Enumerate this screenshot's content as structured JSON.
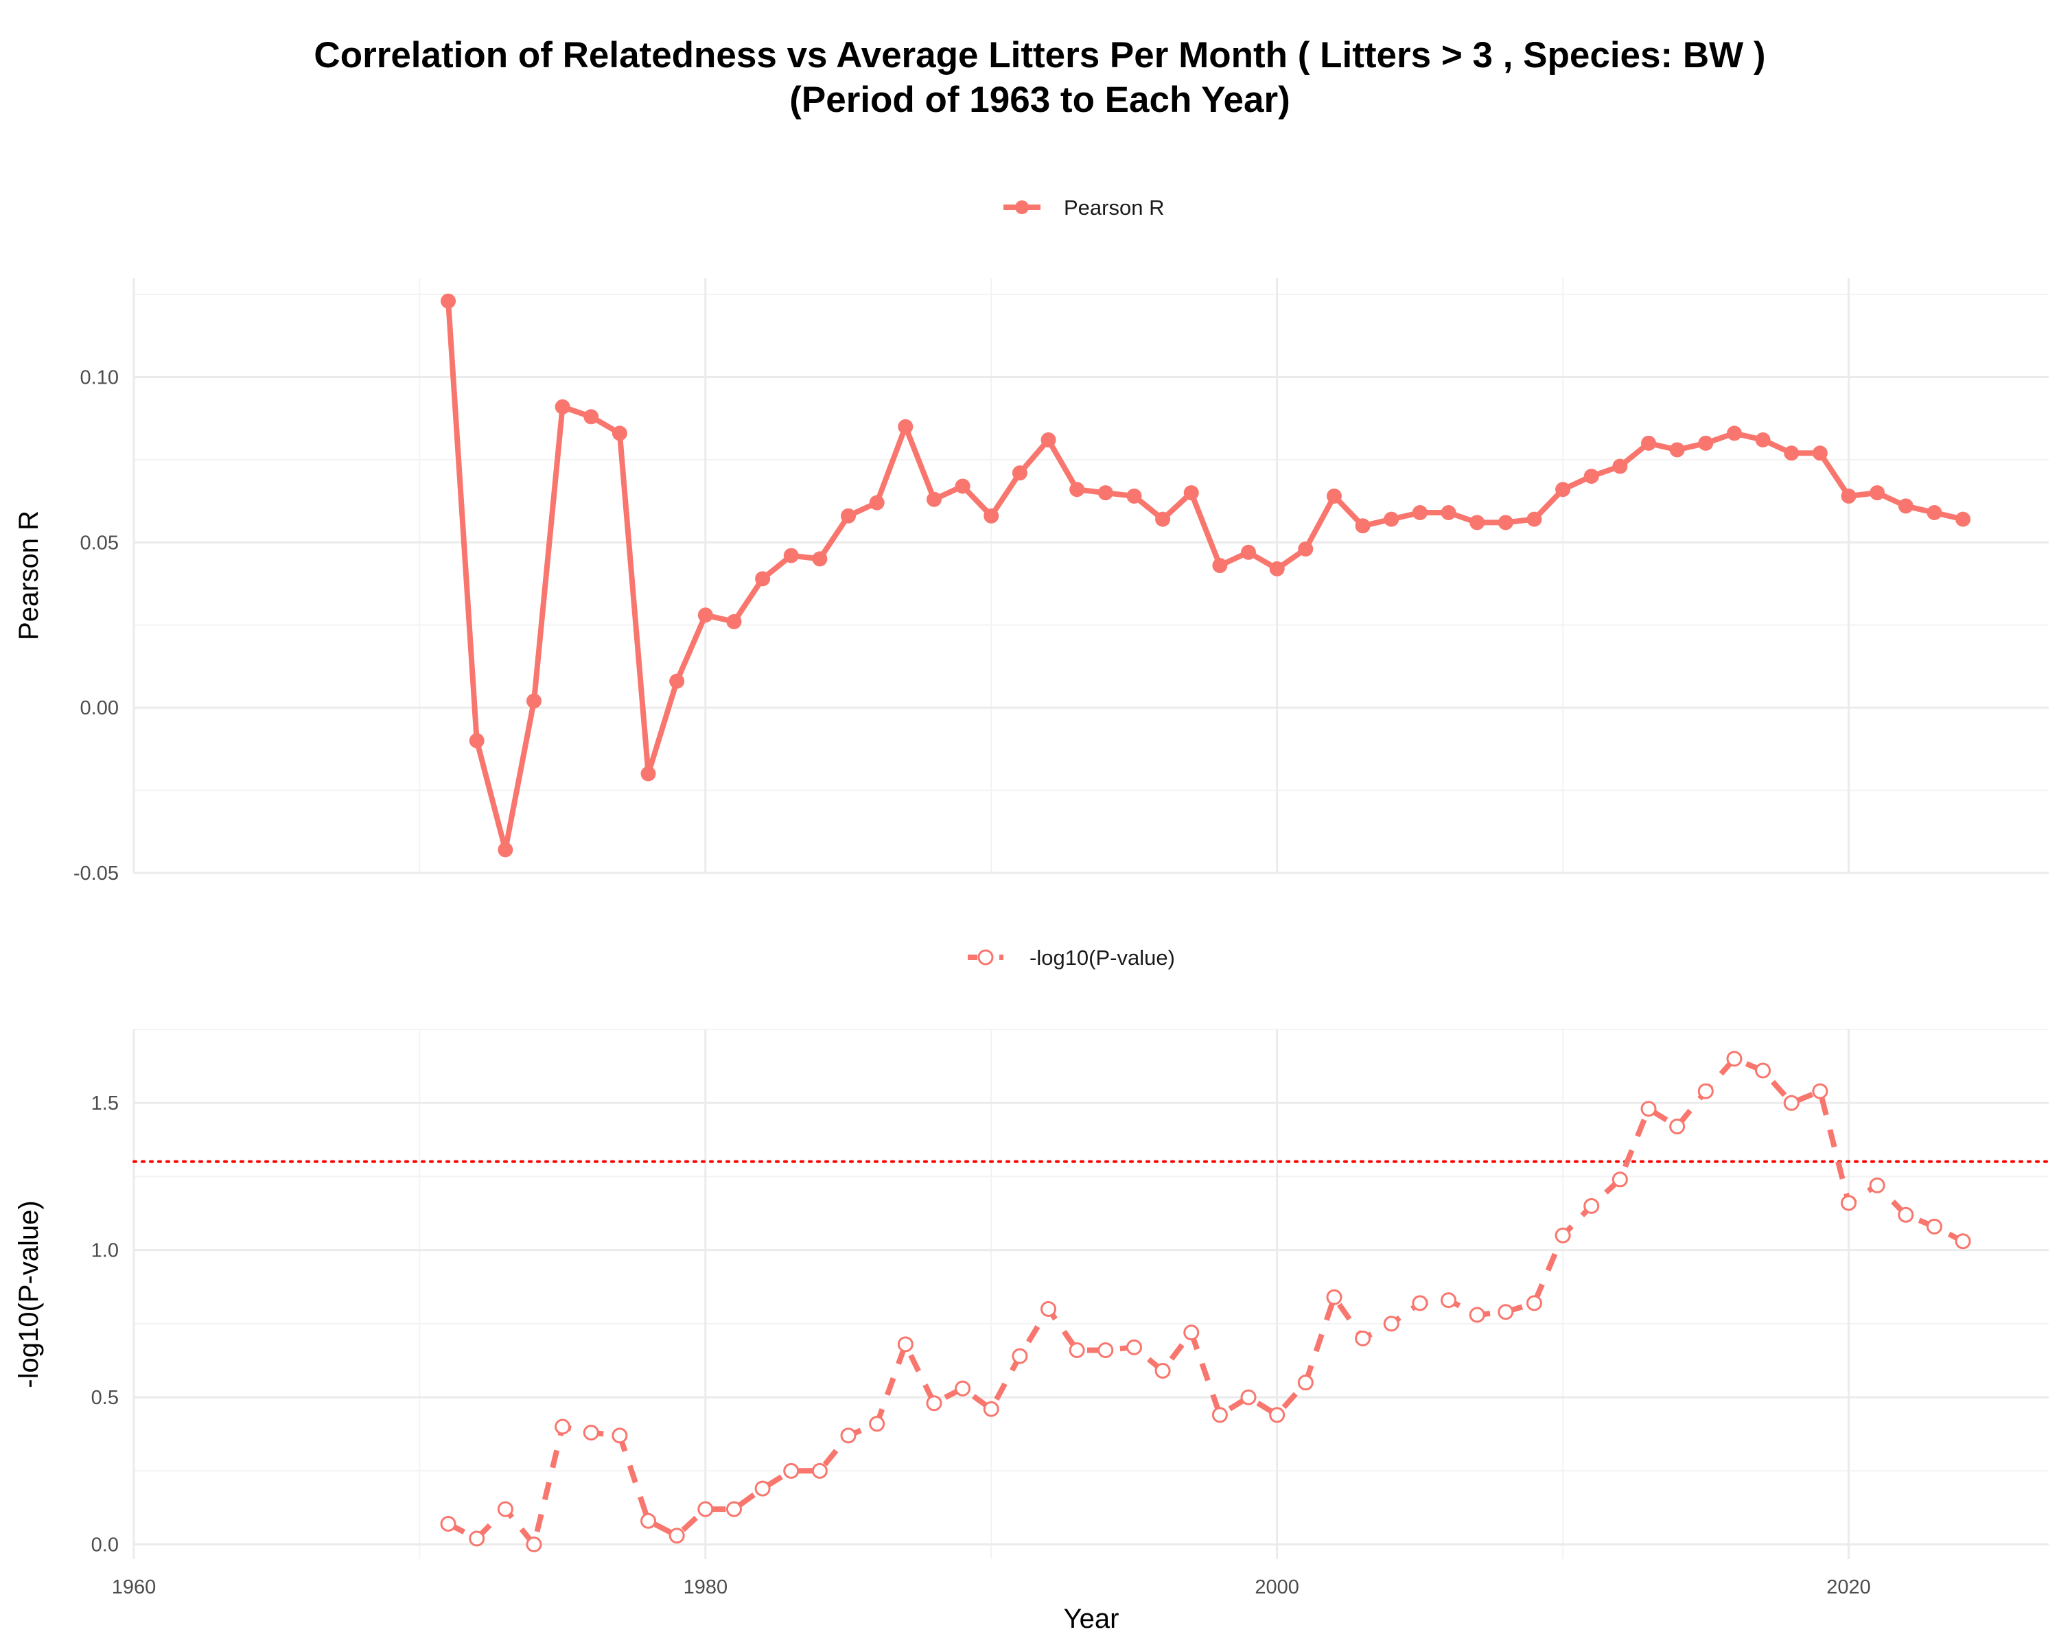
{
  "title": {
    "line1": "Correlation of Relatedness vs Average Litters Per Month ( Litters > 3 , Species: BW )",
    "line2": "(Period of 1963 to Each Year)"
  },
  "colors": {
    "series": "#f8766d",
    "threshold": "#ff0000",
    "grid": "#ebebeb"
  },
  "chart_data": [
    {
      "type": "line",
      "panel": "top",
      "legend": "Pearson R",
      "legend_position": "top",
      "ylabel": "Pearson R",
      "xlabel": "",
      "xlim": [
        1960,
        2027
      ],
      "ylim": [
        -0.05,
        0.13
      ],
      "xticks": [
        1960,
        1980,
        2000,
        2020
      ],
      "yticks": [
        -0.05,
        0.0,
        0.05,
        0.1
      ],
      "ytick_labels": [
        "-0.05",
        "0.00",
        "0.05",
        "0.10"
      ],
      "marker": "filled-circle",
      "line_style": "solid",
      "series": [
        {
          "name": "Pearson R",
          "x": [
            1971,
            1972,
            1973,
            1974,
            1975,
            1976,
            1977,
            1978,
            1979,
            1980,
            1981,
            1982,
            1983,
            1984,
            1985,
            1986,
            1987,
            1988,
            1989,
            1990,
            1991,
            1992,
            1993,
            1994,
            1995,
            1996,
            1997,
            1998,
            1999,
            2000,
            2001,
            2002,
            2003,
            2004,
            2005,
            2006,
            2007,
            2008,
            2009,
            2010,
            2011,
            2012,
            2013,
            2014,
            2015,
            2016,
            2017,
            2018,
            2019,
            2020,
            2021,
            2022,
            2023,
            2024
          ],
          "y": [
            0.123,
            -0.01,
            -0.043,
            0.002,
            0.091,
            0.088,
            0.083,
            -0.02,
            0.008,
            0.028,
            0.026,
            0.039,
            0.046,
            0.045,
            0.058,
            0.062,
            0.085,
            0.063,
            0.067,
            0.058,
            0.071,
            0.081,
            0.066,
            0.065,
            0.064,
            0.057,
            0.065,
            0.043,
            0.047,
            0.042,
            0.048,
            0.064,
            0.055,
            0.057,
            0.059,
            0.059,
            0.056,
            0.056,
            0.057,
            0.066,
            0.07,
            0.073,
            0.08,
            0.078,
            0.08,
            0.083,
            0.081,
            0.077,
            0.077,
            0.064,
            0.065,
            0.061,
            0.059,
            0.057
          ]
        }
      ]
    },
    {
      "type": "line",
      "panel": "bottom",
      "legend": "-log10(P-value)",
      "legend_position": "top",
      "ylabel": "-log10(P-value)",
      "xlabel": "Year",
      "xlim": [
        1960,
        2027
      ],
      "ylim": [
        -0.05,
        1.75
      ],
      "xticks": [
        1960,
        1980,
        2000,
        2020
      ],
      "xtick_labels": [
        "1960",
        "1980",
        "2000",
        "2020"
      ],
      "yticks": [
        0.0,
        0.5,
        1.0,
        1.5
      ],
      "ytick_labels": [
        "0.0",
        "0.5",
        "1.0",
        "1.5"
      ],
      "marker": "open-circle",
      "line_style": "dashed",
      "threshold": {
        "y": 1.301,
        "style": "dotted"
      },
      "series": [
        {
          "name": "-log10(P-value)",
          "x": [
            1971,
            1972,
            1973,
            1974,
            1975,
            1976,
            1977,
            1978,
            1979,
            1980,
            1981,
            1982,
            1983,
            1984,
            1985,
            1986,
            1987,
            1988,
            1989,
            1990,
            1991,
            1992,
            1993,
            1994,
            1995,
            1996,
            1997,
            1998,
            1999,
            2000,
            2001,
            2002,
            2003,
            2004,
            2005,
            2006,
            2007,
            2008,
            2009,
            2010,
            2011,
            2012,
            2013,
            2014,
            2015,
            2016,
            2017,
            2018,
            2019,
            2020,
            2021,
            2022,
            2023,
            2024
          ],
          "y": [
            0.07,
            0.02,
            0.12,
            0.0,
            0.4,
            0.38,
            0.37,
            0.08,
            0.03,
            0.12,
            0.12,
            0.19,
            0.25,
            0.25,
            0.37,
            0.41,
            0.68,
            0.48,
            0.53,
            0.46,
            0.64,
            0.8,
            0.66,
            0.66,
            0.67,
            0.59,
            0.72,
            0.44,
            0.5,
            0.44,
            0.55,
            0.84,
            0.7,
            0.75,
            0.82,
            0.83,
            0.78,
            0.79,
            0.82,
            1.05,
            1.15,
            1.24,
            1.48,
            1.42,
            1.54,
            1.65,
            1.61,
            1.5,
            1.54,
            1.16,
            1.22,
            1.12,
            1.08,
            1.03
          ]
        }
      ]
    }
  ]
}
